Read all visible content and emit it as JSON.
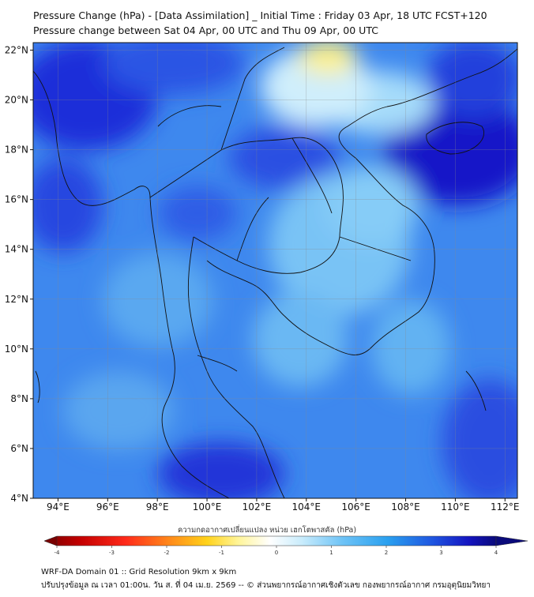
{
  "header": {
    "title_line1": "Pressure Change (hPa) - [Data Assimilation] _ Initial Time : Friday 03 Apr, 18 UTC FCST+120",
    "title_line2": "Pressure change between Sat 04 Apr, 00 UTC and Thu 09 Apr, 00 UTC"
  },
  "map": {
    "lon_labels": [
      "94°E",
      "96°E",
      "98°E",
      "100°E",
      "102°E",
      "104°E",
      "106°E",
      "108°E",
      "110°E",
      "112°E"
    ],
    "lat_labels": [
      "22°N",
      "20°N",
      "18°N",
      "16°N",
      "14°N",
      "12°N",
      "10°N",
      "8°N",
      "6°N",
      "4°N"
    ],
    "lon_range": [
      93,
      112.5
    ],
    "lat_range": [
      4,
      22.3
    ],
    "colors": {
      "deep_blue": "#1a1ad8",
      "mid_blue": "#2f7ff0",
      "light_blue": "#7cc8f7",
      "yellow": "#fdf290",
      "border": "#111111"
    }
  },
  "colorbar": {
    "label": "ความกดอากาศเปลี่ยนแปลง หน่วย เฮกโตพาสคัล (hPa)",
    "ticks": [
      "-4",
      "-3",
      "-2",
      "-1",
      "0",
      "1",
      "2",
      "3",
      "4"
    ],
    "range": [
      -4,
      4
    ]
  },
  "footer": {
    "line1": "WRF-DA Domain 01 :: Grid Resolution 9km x 9km",
    "line2": "ปรับปรุงข้อมูล ณ เวลา 01:00น. วัน ส. ที่ 04 เม.ย. 2569 -- © ส่วนพยากรณ์อากาศเชิงตัวเลข กองพยากรณ์อากาศ กรมอุตุนิยมวิทยา"
  }
}
